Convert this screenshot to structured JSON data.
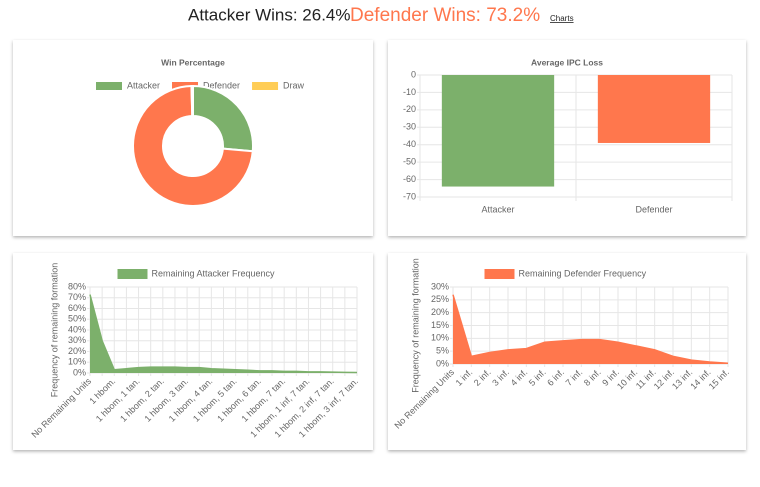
{
  "header": {
    "attacker": "Attacker Wins: 26.4%",
    "defender": "Defender Wins: 73.2%",
    "link": "Charts"
  },
  "chart_data": [
    {
      "type": "doughnut",
      "title": "Win Percentage",
      "categories": [
        "Attacker",
        "Defender",
        "Draw"
      ],
      "values": [
        26.4,
        73.2,
        0.4
      ],
      "colors": [
        "#7cb06b",
        "#ff774d",
        "#ffcd56"
      ],
      "legend": "top"
    },
    {
      "type": "bar",
      "title": "Average IPC Loss",
      "categories": [
        "Attacker",
        "Defender"
      ],
      "values": [
        -64,
        -39
      ],
      "colors": [
        "#7cb06b",
        "#ff774d"
      ],
      "ylim": [
        -70,
        0
      ],
      "yticks": [
        0,
        -10,
        -20,
        -30,
        -40,
        -50,
        -60,
        -70
      ],
      "grid": true
    },
    {
      "type": "area",
      "ylabel": "Frequency of remaining formation",
      "categories": [
        "No Remaining Units",
        null,
        "1 hbom.",
        null,
        "1 hbom, 1 tan.",
        null,
        "1 hbom, 2 tan.",
        null,
        "1 hbom, 3 tan.",
        null,
        "1 hbom, 4 tan.",
        null,
        "1 hbom, 5 tan.",
        null,
        "1 hbom, 6 tan.",
        null,
        "1 hbom, 7 tan.",
        null,
        "1 hbom, 1 inf, 7 tan.",
        null,
        "1 hbom, 2 inf, 7 tan.",
        null,
        "1 hbom, 3 inf, 7 tan."
      ],
      "series": [
        {
          "name": "Remaining Attacker Frequency",
          "color": "#7cb06b",
          "values": [
            73,
            30,
            3,
            4,
            5,
            5.5,
            5.5,
            5.5,
            5,
            5,
            4,
            3.5,
            3,
            2.5,
            2,
            2,
            1.5,
            1.5,
            1,
            1,
            0.8,
            0.6,
            0.5
          ]
        }
      ],
      "ylim": [
        0,
        80
      ],
      "yticks": [
        {
          "value": 0,
          "label": "0%"
        },
        {
          "value": 10,
          "label": "10%"
        },
        {
          "value": 20,
          "label": "20%"
        },
        {
          "value": 30,
          "label": "30%"
        },
        {
          "value": 40,
          "label": "40%"
        },
        {
          "value": 50,
          "label": "50%"
        },
        {
          "value": 60,
          "label": "60%"
        },
        {
          "value": 70,
          "label": "70%"
        },
        {
          "value": 80,
          "label": "80%"
        }
      ],
      "grid": true
    },
    {
      "type": "area",
      "ylabel": "Frequency of remaining formation",
      "categories": [
        "No Remaining Units",
        "1 inf.",
        "2 inf.",
        "3 inf.",
        "4 inf.",
        "5 inf.",
        "6 inf.",
        "7 inf.",
        "8 inf.",
        "9 inf.",
        "10 inf.",
        "11 inf.",
        "12 inf.",
        "13 inf.",
        "14 inf.",
        "15 inf."
      ],
      "series": [
        {
          "name": "Remaining Defender Frequency",
          "color": "#ff774d",
          "values": [
            27,
            3,
            4.5,
            5.5,
            6,
            8.5,
            9,
            9.5,
            9.5,
            8.5,
            7,
            5.5,
            3,
            1.5,
            0.8,
            0.3
          ]
        }
      ],
      "ylim": [
        0,
        30
      ],
      "yticks": [
        {
          "value": 0,
          "label": "0%"
        },
        {
          "value": 5,
          "label": "5%"
        },
        {
          "value": 10,
          "label": "10%"
        },
        {
          "value": 15,
          "label": "15%"
        },
        {
          "value": 20,
          "label": "20%"
        },
        {
          "value": 25,
          "label": "25%"
        },
        {
          "value": 30,
          "label": "30%"
        }
      ],
      "grid": true
    }
  ]
}
